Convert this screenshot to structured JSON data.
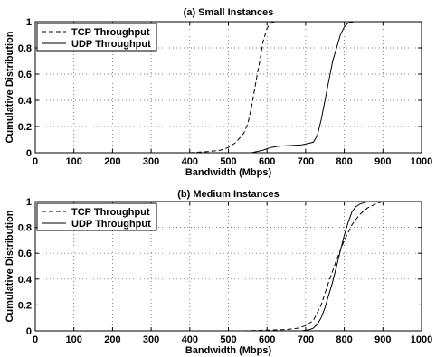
{
  "chart_data": [
    {
      "type": "line",
      "title": "(a) Small Instances",
      "xlabel": "Bandwidth (Mbps)",
      "ylabel": "Cumulative Distribution",
      "xlim": [
        0,
        1000
      ],
      "ylim": [
        0,
        1
      ],
      "xticks": [
        "0",
        "100",
        "200",
        "300",
        "400",
        "500",
        "600",
        "700",
        "800",
        "900",
        "1000"
      ],
      "yticks": [
        "0",
        "0.2",
        "0.4",
        "0.6",
        "0.8",
        "1"
      ],
      "grid": true,
      "legend": "top-left",
      "series": [
        {
          "name": "TCP Throughput",
          "style": "dashed",
          "x": [
            400,
            450,
            480,
            500,
            520,
            540,
            550,
            560,
            570,
            575,
            580,
            590,
            600,
            610,
            620
          ],
          "y": [
            0,
            0.01,
            0.02,
            0.04,
            0.08,
            0.15,
            0.22,
            0.35,
            0.52,
            0.6,
            0.68,
            0.85,
            0.95,
            0.99,
            1.0
          ]
        },
        {
          "name": "UDP Throughput",
          "style": "solid",
          "x": [
            560,
            590,
            610,
            630,
            690,
            720,
            730,
            740,
            750,
            760,
            770,
            780,
            790,
            800,
            810,
            825,
            840
          ],
          "y": [
            0,
            0.02,
            0.04,
            0.05,
            0.06,
            0.08,
            0.13,
            0.25,
            0.4,
            0.55,
            0.7,
            0.8,
            0.9,
            0.96,
            0.99,
            1.0,
            1.0
          ]
        }
      ]
    },
    {
      "type": "line",
      "title": "(b) Medium Instances",
      "xlabel": "Bandwidth (Mbps)",
      "ylabel": "Cumulative Distribution",
      "xlim": [
        0,
        1000
      ],
      "ylim": [
        0,
        1
      ],
      "xticks": [
        "0",
        "100",
        "200",
        "300",
        "400",
        "500",
        "600",
        "700",
        "800",
        "900",
        "1000"
      ],
      "yticks": [
        "0",
        "0.2",
        "0.4",
        "0.6",
        "0.8",
        "1"
      ],
      "grid": true,
      "legend": "top-left",
      "series": [
        {
          "name": "TCP Throughput",
          "style": "dashed",
          "x": [
            540,
            600,
            650,
            680,
            700,
            720,
            740,
            760,
            780,
            800,
            820,
            840,
            860,
            880,
            900
          ],
          "y": [
            0,
            0.005,
            0.01,
            0.02,
            0.04,
            0.08,
            0.2,
            0.38,
            0.55,
            0.7,
            0.82,
            0.9,
            0.95,
            0.98,
            1.0
          ]
        },
        {
          "name": "UDP Throughput",
          "style": "solid",
          "x": [
            690,
            710,
            720,
            730,
            740,
            750,
            760,
            770,
            780,
            790,
            800,
            810,
            820,
            830,
            840,
            860,
            880
          ],
          "y": [
            0,
            0.01,
            0.02,
            0.05,
            0.1,
            0.18,
            0.28,
            0.38,
            0.5,
            0.62,
            0.74,
            0.84,
            0.92,
            0.96,
            0.98,
            1.0,
            1.0
          ]
        }
      ]
    }
  ]
}
